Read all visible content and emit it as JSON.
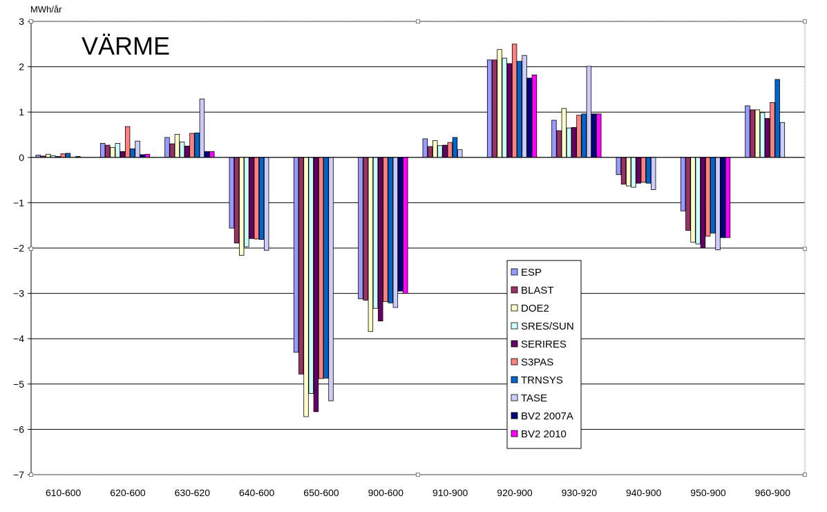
{
  "chart_data": {
    "type": "bar",
    "title": "VÄRME",
    "ylabel": "MWh/år",
    "xlabel": "",
    "ylim": [
      -7,
      3
    ],
    "yticks": [
      3,
      2,
      1,
      0,
      -1,
      -2,
      -3,
      -4,
      -5,
      -6,
      -7
    ],
    "grid": true,
    "legend_position": "center-bottom",
    "categories": [
      "610-600",
      "620-600",
      "630-620",
      "640-600",
      "650-600",
      "900-600",
      "910-900",
      "920-900",
      "930-920",
      "940-900",
      "950-900",
      "960-900"
    ],
    "series": [
      {
        "name": "ESP",
        "color": "#9999ff",
        "values": [
          0.05,
          0.31,
          0.44,
          -1.56,
          -4.3,
          -3.12,
          0.41,
          2.15,
          0.82,
          -0.38,
          -1.18,
          1.14
        ]
      },
      {
        "name": "BLAST",
        "color": "#993366",
        "values": [
          0.03,
          0.27,
          0.3,
          -1.89,
          -4.78,
          -3.15,
          0.24,
          2.15,
          0.59,
          -0.59,
          -1.61,
          1.05
        ]
      },
      {
        "name": "DOE2",
        "color": "#ffffcc",
        "values": [
          0.07,
          0.22,
          0.51,
          -2.16,
          -5.72,
          -3.84,
          0.37,
          2.38,
          1.08,
          -0.63,
          -1.87,
          1.05
        ]
      },
      {
        "name": "SRES/SUN",
        "color": "#ccffff",
        "values": [
          0.04,
          0.31,
          0.34,
          -1.97,
          -5.21,
          -3.33,
          0.26,
          2.19,
          0.65,
          -0.66,
          -1.91,
          0.99
        ]
      },
      {
        "name": "SERIRES",
        "color": "#660066",
        "values": [
          0.02,
          0.13,
          0.25,
          -1.79,
          -5.61,
          -3.61,
          0.27,
          2.07,
          0.66,
          -0.57,
          -2.0,
          0.86
        ]
      },
      {
        "name": "S3PAS",
        "color": "#ff8080",
        "values": [
          0.08,
          0.68,
          0.53,
          -1.8,
          -4.88,
          -3.18,
          0.33,
          2.5,
          0.93,
          -0.55,
          -1.74,
          1.21
        ]
      },
      {
        "name": "TRNSYS",
        "color": "#0066cc",
        "values": [
          0.09,
          0.19,
          0.54,
          -1.81,
          -4.87,
          -3.21,
          0.44,
          2.12,
          0.96,
          -0.57,
          -1.67,
          1.72
        ]
      },
      {
        "name": "TASE",
        "color": "#ccccff",
        "values": [
          0.0,
          0.36,
          1.29,
          -2.05,
          -5.37,
          -3.31,
          0.17,
          2.25,
          2.01,
          -0.71,
          -2.04,
          0.77
        ]
      },
      {
        "name": "BV2 2007A",
        "color": "#000080",
        "values": [
          0.02,
          0.06,
          0.13,
          0,
          0,
          -2.95,
          0,
          1.75,
          0.96,
          0,
          -1.77,
          0
        ]
      },
      {
        "name": "BV2 2010",
        "color": "#ff00ff",
        "values": [
          0,
          0.07,
          0.13,
          0,
          0,
          -3.0,
          0,
          1.82,
          0.96,
          0,
          -1.77,
          0
        ]
      }
    ]
  }
}
